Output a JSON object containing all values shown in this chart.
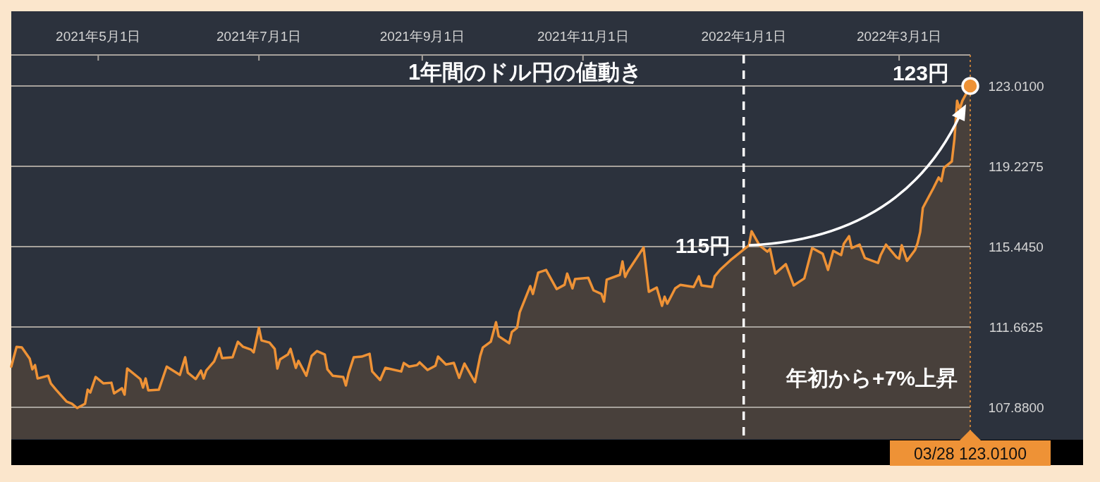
{
  "chart_data": {
    "type": "area",
    "title": "1年間のドル円の値動き",
    "xlim": [
      "2021-03-29",
      "2022-03-28"
    ],
    "xticks": [
      {
        "value": "2021-05-01",
        "label": "2021年5月1日"
      },
      {
        "value": "2021-07-01",
        "label": "2021年7月1日"
      },
      {
        "value": "2021-09-01",
        "label": "2021年9月1日"
      },
      {
        "value": "2021-11-01",
        "label": "2021年11月1日"
      },
      {
        "value": "2022-01-01",
        "label": "2022年1月1日"
      },
      {
        "value": "2022-03-01",
        "label": "2022年3月1日"
      }
    ],
    "ylim": [
      106.39,
      124.47
    ],
    "yticks": [
      {
        "value": 107.88,
        "label": "107.8800"
      },
      {
        "value": 111.6625,
        "label": "111.6625"
      },
      {
        "value": 115.445,
        "label": "115.4450"
      },
      {
        "value": 119.2275,
        "label": "119.2275"
      },
      {
        "value": 123.01,
        "label": "123.0100"
      }
    ],
    "grid": "y",
    "series": [
      {
        "color": "#ee9236",
        "x": [
          "2021-03-29",
          "2021-03-31",
          "2021-04-02",
          "2021-04-05",
          "2021-04-06",
          "2021-04-07",
          "2021-04-08",
          "2021-04-12",
          "2021-04-13",
          "2021-04-15",
          "2021-04-19",
          "2021-04-21",
          "2021-04-23",
          "2021-04-26",
          "2021-04-27",
          "2021-04-28",
          "2021-04-30",
          "2021-05-03",
          "2021-05-06",
          "2021-05-07",
          "2021-05-10",
          "2021-05-11",
          "2021-05-12",
          "2021-05-17",
          "2021-05-18",
          "2021-05-19",
          "2021-05-20",
          "2021-05-24",
          "2021-05-27",
          "2021-06-01",
          "2021-06-03",
          "2021-06-04",
          "2021-06-07",
          "2021-06-09",
          "2021-06-10",
          "2021-06-11",
          "2021-06-14",
          "2021-06-16",
          "2021-06-17",
          "2021-06-21",
          "2021-06-23",
          "2021-06-25",
          "2021-06-28",
          "2021-06-29",
          "2021-07-01",
          "2021-07-02",
          "2021-07-05",
          "2021-07-07",
          "2021-07-08",
          "2021-07-09",
          "2021-07-12",
          "2021-07-13",
          "2021-07-15",
          "2021-07-16",
          "2021-07-19",
          "2021-07-21",
          "2021-07-23",
          "2021-07-26",
          "2021-07-27",
          "2021-07-29",
          "2021-08-02",
          "2021-08-03",
          "2021-08-04",
          "2021-08-06",
          "2021-08-09",
          "2021-08-12",
          "2021-08-13",
          "2021-08-16",
          "2021-08-18",
          "2021-08-24",
          "2021-08-25",
          "2021-08-27",
          "2021-08-30",
          "2021-08-31",
          "2021-09-03",
          "2021-09-06",
          "2021-09-07",
          "2021-09-10",
          "2021-09-13",
          "2021-09-15",
          "2021-09-17",
          "2021-09-21",
          "2021-09-23",
          "2021-09-24",
          "2021-09-27",
          "2021-09-29",
          "2021-09-30",
          "2021-10-04",
          "2021-10-05",
          "2021-10-07",
          "2021-10-08",
          "2021-10-12",
          "2021-10-13",
          "2021-10-15",
          "2021-10-18",
          "2021-10-22",
          "2021-10-25",
          "2021-10-26",
          "2021-10-28",
          "2021-10-29",
          "2021-11-03",
          "2021-11-05",
          "2021-11-08",
          "2021-11-09",
          "2021-11-10",
          "2021-11-15",
          "2021-11-16",
          "2021-11-17",
          "2021-11-18",
          "2021-11-24",
          "2021-11-26",
          "2021-11-29",
          "2021-12-01",
          "2021-12-02",
          "2021-12-03",
          "2021-12-06",
          "2021-12-08",
          "2021-12-13",
          "2021-12-15",
          "2021-12-16",
          "2021-12-20",
          "2021-12-21",
          "2021-12-23",
          "2021-12-27",
          "2021-12-29",
          "2021-12-31",
          "2022-01-03",
          "2022-01-04",
          "2022-01-07",
          "2022-01-10",
          "2022-01-11",
          "2022-01-13",
          "2022-01-17",
          "2022-01-20",
          "2022-01-24",
          "2022-01-27",
          "2022-01-31",
          "2022-02-02",
          "2022-02-04",
          "2022-02-07",
          "2022-02-08",
          "2022-02-10",
          "2022-02-11",
          "2022-02-14",
          "2022-02-16",
          "2022-02-21",
          "2022-02-22",
          "2022-02-24",
          "2022-02-28",
          "2022-03-01",
          "2022-03-02",
          "2022-03-04",
          "2022-03-07",
          "2022-03-08",
          "2022-03-09",
          "2022-03-10",
          "2022-03-14",
          "2022-03-16",
          "2022-03-17",
          "2022-03-18",
          "2022-03-21",
          "2022-03-22",
          "2022-03-23",
          "2022-03-24",
          "2022-03-25",
          "2022-03-28"
        ],
        "values": [
          109.8,
          110.73,
          110.7,
          110.17,
          109.67,
          109.87,
          109.24,
          109.37,
          109.01,
          108.71,
          108.15,
          108.05,
          107.85,
          108.05,
          108.71,
          108.58,
          109.31,
          109.01,
          109.04,
          108.54,
          108.78,
          108.48,
          109.71,
          109.21,
          108.81,
          109.24,
          108.68,
          108.71,
          109.8,
          109.41,
          110.24,
          109.51,
          109.21,
          109.61,
          109.24,
          109.61,
          110.04,
          110.67,
          110.2,
          110.24,
          110.97,
          110.73,
          110.6,
          110.47,
          111.63,
          111.03,
          110.93,
          110.63,
          109.71,
          110.14,
          110.37,
          110.63,
          109.74,
          110.07,
          109.37,
          110.3,
          110.53,
          110.37,
          109.67,
          109.37,
          109.31,
          108.91,
          109.47,
          110.24,
          110.27,
          110.4,
          109.57,
          109.17,
          109.74,
          109.57,
          109.97,
          109.8,
          109.87,
          110.0,
          109.64,
          109.84,
          110.27,
          109.9,
          109.97,
          109.27,
          109.94,
          109.07,
          110.3,
          110.7,
          110.97,
          111.89,
          111.23,
          110.9,
          111.43,
          111.63,
          112.36,
          113.59,
          113.22,
          114.22,
          114.35,
          113.45,
          113.65,
          114.18,
          113.48,
          113.92,
          113.98,
          113.39,
          113.22,
          112.86,
          113.89,
          114.12,
          114.75,
          114.02,
          114.28,
          115.41,
          113.32,
          113.52,
          112.66,
          113.09,
          112.76,
          113.48,
          113.65,
          113.55,
          114.05,
          113.62,
          113.55,
          114.05,
          114.35,
          114.81,
          115.01,
          115.21,
          115.51,
          116.17,
          115.51,
          115.21,
          115.34,
          114.18,
          114.62,
          113.62,
          113.95,
          115.38,
          115.11,
          114.35,
          115.25,
          115.05,
          115.58,
          115.94,
          115.38,
          115.54,
          114.91,
          114.68,
          115.05,
          115.54,
          114.95,
          114.88,
          115.51,
          114.78,
          115.28,
          115.61,
          116.14,
          117.27,
          118.2,
          118.7,
          118.53,
          119.16,
          119.46,
          120.52,
          122.31,
          121.92,
          122.31,
          123.01
        ]
      },
      {
        "type": "scatter",
        "marker": "circle",
        "color": "#ee9236",
        "x": [
          "2022-03-28"
        ],
        "values": [
          123.01
        ]
      }
    ],
    "ref_lines": [
      {
        "axis": "x",
        "value": "2022-01-01",
        "color": "#ffffff",
        "line_style": "dashed"
      },
      {
        "axis": "x",
        "value": "2022-03-28",
        "label": "03/28  123.0100",
        "color": "#ee9236",
        "line_style": "dotted"
      }
    ],
    "annotations": [
      {
        "text": "115円",
        "x": "2022-01-03",
        "y": 115.51
      },
      {
        "text": "123円",
        "x": "2022-03-28",
        "y": 123.01
      },
      "年初から+7%上昇"
    ]
  }
}
